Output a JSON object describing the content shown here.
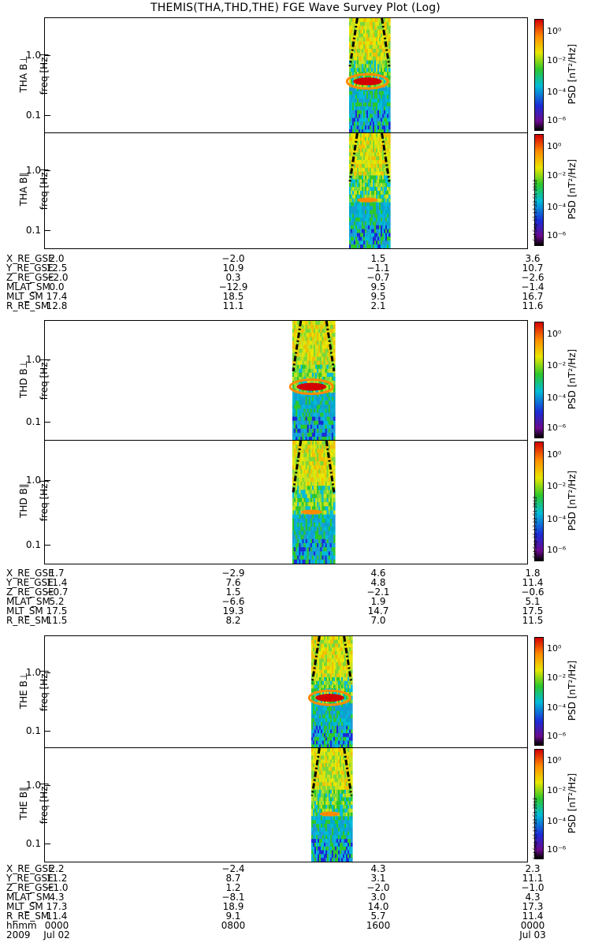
{
  "title": "THEMIS(THA,THD,THE) FGE Wave Survey Plot (Log)",
  "chart_data": [
    {
      "type": "heatmap",
      "probe": "THA",
      "panels": [
        {
          "ylabel": "THA B⊥",
          "unit_label": "freq [Hz]",
          "yticks": [
            "1.0",
            "0.1"
          ],
          "colorbar_label": "PSD [nT²/Hz]",
          "colorbar_ticks": [
            "10⁰",
            "10⁻²",
            "10⁻⁴",
            "10⁻⁶"
          ]
        },
        {
          "ylabel": "THA B∥",
          "unit_label": "freq [Hz]",
          "yticks": [
            "1.0",
            "0.1"
          ],
          "colorbar_label": "PSD [nT²/Hz]",
          "colorbar_ticks": [
            "10⁰",
            "10⁻²",
            "10⁻⁴",
            "10⁻⁶"
          ]
        }
      ],
      "ephemeris": {
        "labels": [
          "X_RE_GSE",
          "Y_RE_GSE",
          "Z_RE_GSE",
          "MLAT_SM",
          "MLT_SM",
          "R_RE_SM"
        ],
        "columns": [
          [
            "2.0",
            "12.5",
            "−2.0",
            "0.0",
            "17.4",
            "12.8"
          ],
          [
            "−2.0",
            "10.9",
            "0.3",
            "−12.9",
            "18.5",
            "11.1"
          ],
          [
            "1.5",
            "−1.1",
            "−0.7",
            "9.5",
            "9.5",
            "2.1"
          ],
          [
            "3.6",
            "10.7",
            "−2.6",
            "−1.4",
            "16.7",
            "11.6"
          ]
        ]
      }
    },
    {
      "type": "heatmap",
      "probe": "THD",
      "panels": [
        {
          "ylabel": "THD B⊥",
          "unit_label": "freq [Hz]",
          "yticks": [
            "1.0",
            "0.1"
          ],
          "colorbar_label": "PSD [nT²/Hz]",
          "colorbar_ticks": [
            "10⁰",
            "10⁻²",
            "10⁻⁴",
            "10⁻⁶"
          ]
        },
        {
          "ylabel": "THD B∥",
          "unit_label": "freq [Hz]",
          "yticks": [
            "1.0",
            "0.1"
          ],
          "colorbar_label": "PSD [nT²/Hz]",
          "colorbar_ticks": [
            "10⁰",
            "10⁻²",
            "10⁻⁴",
            "10⁻⁶"
          ]
        }
      ],
      "ephemeris": {
        "labels": [
          "X_RE_GSE",
          "Y_RE_GSE",
          "Z_RE_GSE",
          "MLAT_SM",
          "MLT_SM",
          "R_RE_SM"
        ],
        "columns": [
          [
            "1.7",
            "11.4",
            "−0.7",
            "5.2",
            "17.5",
            "11.5"
          ],
          [
            "−2.9",
            "7.6",
            "1.5",
            "−6.6",
            "19.3",
            "8.2"
          ],
          [
            "4.6",
            "4.8",
            "−2.1",
            "1.9",
            "14.7",
            "7.0"
          ],
          [
            "1.8",
            "11.4",
            "−0.6",
            "5.1",
            "17.5",
            "11.5"
          ]
        ]
      }
    },
    {
      "type": "heatmap",
      "probe": "THE",
      "panels": [
        {
          "ylabel": "THE B⊥",
          "unit_label": "freq [Hz]",
          "yticks": [
            "1.0",
            "0.1"
          ],
          "colorbar_label": "PSD [nT²/Hz]",
          "colorbar_ticks": [
            "10⁰",
            "10⁻²",
            "10⁻⁴",
            "10⁻⁶"
          ]
        },
        {
          "ylabel": "THE B∥",
          "unit_label": "freq [Hz]",
          "yticks": [
            "1.0",
            "0.1"
          ],
          "colorbar_label": "PSD [nT²/Hz]",
          "colorbar_ticks": [
            "10⁰",
            "10⁻²",
            "10⁻⁴",
            "10⁻⁶"
          ]
        }
      ],
      "ephemeris": {
        "labels": [
          "X_RE_GSE",
          "Y_RE_GSE",
          "Z_RE_GSE",
          "MLAT_SM",
          "MLT_SM",
          "R_RE_SM",
          "hhmm",
          "2009"
        ],
        "columns": [
          [
            "2.2",
            "11.2",
            "−1.0",
            "4.3",
            "17.3",
            "11.4",
            "0000",
            "Jul 02"
          ],
          [
            "−2.4",
            "8.7",
            "1.2",
            "−8.1",
            "18.9",
            "9.1",
            "0800",
            ""
          ],
          [
            "4.3",
            "3.1",
            "−2.0",
            "3.0",
            "14.0",
            "5.7",
            "1600",
            ""
          ],
          [
            "2.3",
            "11.1",
            "−1.0",
            "4.3",
            "17.3",
            "11.4",
            "0000",
            "Jul 03"
          ]
        ]
      }
    }
  ],
  "timestamp": "Sat Sep 15 17:22:51 2012"
}
